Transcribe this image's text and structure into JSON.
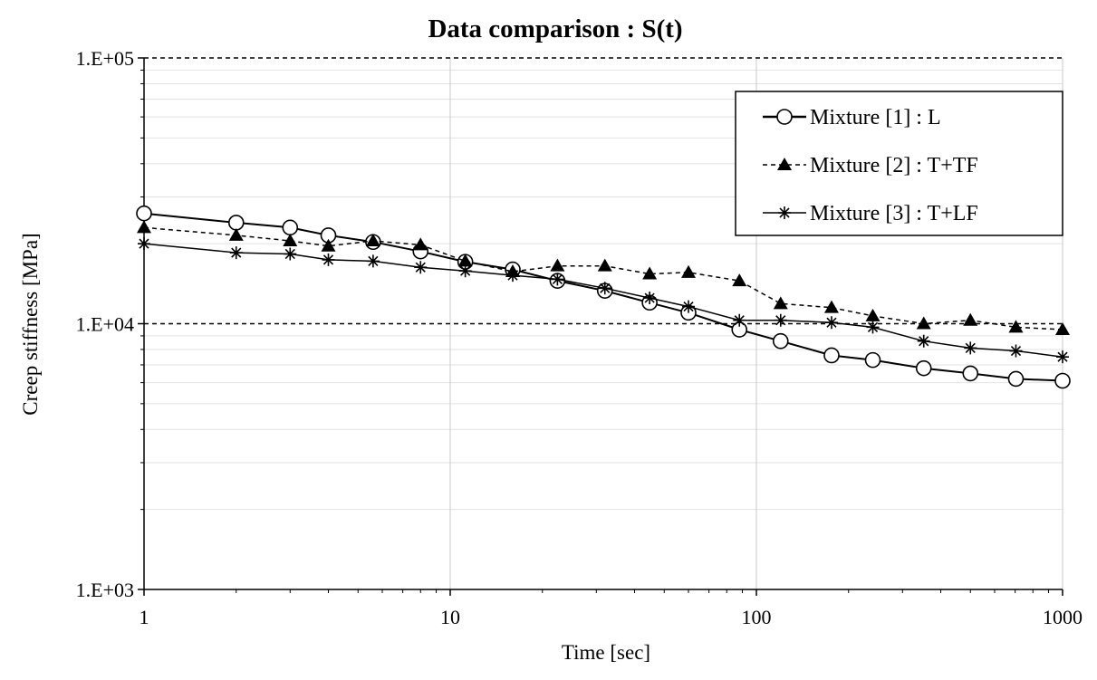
{
  "chart_data": {
    "type": "line",
    "title": "Data comparison : S(t)",
    "xlabel": "Time [sec]",
    "ylabel": "Creep stiffness [MPa]",
    "x_scale": "log",
    "y_scale": "log",
    "xlim": [
      1,
      1000
    ],
    "ylim": [
      1000,
      100000
    ],
    "x_ticks": [
      {
        "value": 1,
        "label": "1"
      },
      {
        "value": 10,
        "label": "10"
      },
      {
        "value": 100,
        "label": "100"
      },
      {
        "value": 1000,
        "label": "1000"
      }
    ],
    "y_ticks": [
      {
        "value": 1000,
        "label": "1.E+03"
      },
      {
        "value": 10000,
        "label": "1.E+04"
      },
      {
        "value": 100000,
        "label": "1.E+05"
      }
    ],
    "reference_lines_y": [
      10000,
      100000
    ],
    "grid": true,
    "legend_position": "top-right",
    "series": [
      {
        "name": "Mixture [1] : L",
        "marker": "circle-open",
        "line": "solid",
        "color": "#000000",
        "x": [
          1,
          2,
          3,
          4,
          5.6,
          8,
          11.2,
          16,
          22.4,
          32,
          44.8,
          60,
          88,
          120,
          176,
          240,
          352,
          500,
          704,
          1000
        ],
        "y": [
          26000,
          24000,
          23000,
          21500,
          20300,
          18700,
          17100,
          16000,
          14500,
          13300,
          12000,
          11000,
          9500,
          8600,
          7600,
          7300,
          6800,
          6500,
          6200,
          6100
        ]
      },
      {
        "name": "Mixture [2] : T+TF",
        "marker": "triangle-filled",
        "line": "dashed",
        "color": "#000000",
        "x": [
          1,
          2,
          3,
          4,
          5.6,
          8,
          11.2,
          16,
          22.4,
          32,
          44.8,
          60,
          88,
          120,
          176,
          240,
          352,
          500,
          704,
          1000
        ],
        "y": [
          23000,
          21500,
          20500,
          19600,
          20500,
          19800,
          17200,
          15700,
          16500,
          16500,
          15400,
          15600,
          14500,
          11900,
          11500,
          10700,
          10000,
          10300,
          9700,
          9500
        ]
      },
      {
        "name": "Mixture [3] : T+LF",
        "marker": "asterisk",
        "line": "solid",
        "color": "#000000",
        "x": [
          1,
          2,
          3,
          4,
          5.6,
          8,
          11.2,
          16,
          22.4,
          32,
          44.8,
          60,
          88,
          120,
          176,
          240,
          352,
          500,
          704,
          1000
        ],
        "y": [
          20000,
          18500,
          18300,
          17400,
          17200,
          16300,
          15800,
          15200,
          14700,
          13600,
          12500,
          11600,
          10300,
          10300,
          10100,
          9700,
          8600,
          8100,
          7900,
          7500
        ]
      }
    ]
  }
}
